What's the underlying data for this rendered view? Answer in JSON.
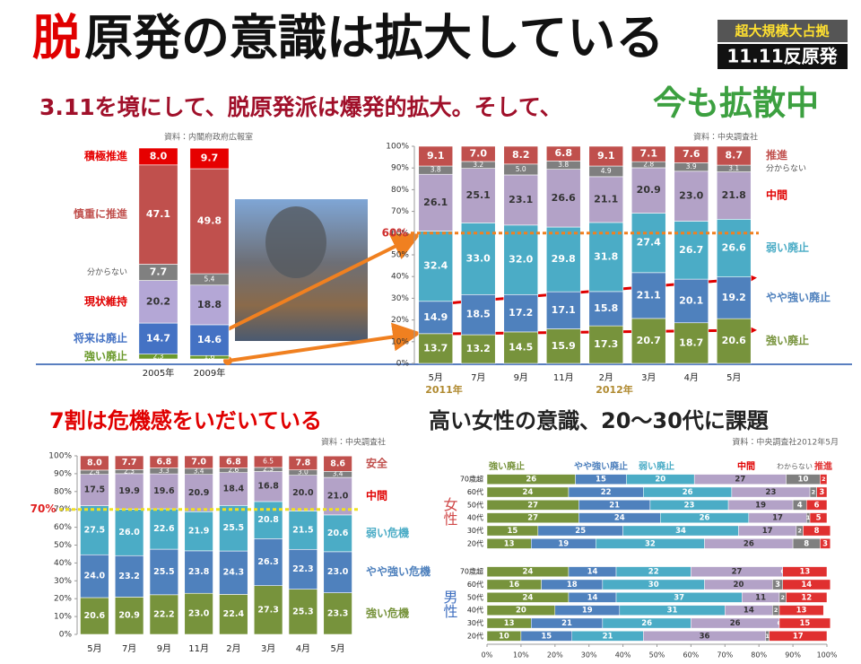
{
  "header": {
    "title_lead": "脱",
    "title_rest": "原発の意識は拡大している",
    "badge_top": "超大規模大占拠",
    "badge_bottom": "11.11反原発",
    "subtitle": "3.11を境にして、脱原発派は爆発的拡大。そして、",
    "subtitle_emph": "今も拡散中"
  },
  "chart_data": [
    {
      "type": "stacked_bar",
      "source": "資料：内閣府政府広報室",
      "categories": [
        "2005年",
        "2009年"
      ],
      "ylim": [
        0,
        100
      ],
      "series": [
        {
          "name": "強い廃止",
          "color": "#6b9a2c",
          "values": [
            2.3,
            1.6
          ],
          "value_labels": [
            "2.3",
            "1.6"
          ]
        },
        {
          "name": "将来は廃止",
          "color": "#4472c4",
          "values": [
            14.7,
            14.6
          ],
          "value_labels": [
            "14.7",
            "14.6"
          ]
        },
        {
          "name": "現状維持",
          "color": "#b4a7d6",
          "values": [
            20.2,
            18.8
          ],
          "value_labels": [
            "20.2",
            "18.8"
          ]
        },
        {
          "name": "分からない",
          "color": "#808080",
          "values": [
            7.7,
            5.4
          ],
          "value_labels": [
            "7.7",
            "5.4"
          ]
        },
        {
          "name": "慎重に推進",
          "color": "#c0504d",
          "values": [
            47.1,
            49.8
          ],
          "value_labels": [
            "47.1",
            "49.8"
          ]
        },
        {
          "name": "積極推進",
          "color": "#e60000",
          "values": [
            8.0,
            9.7
          ],
          "value_labels": [
            "8.0",
            "9.7"
          ]
        }
      ]
    },
    {
      "type": "stacked_bar",
      "source": "資料：中央調査社",
      "categories": [
        "5月",
        "7月",
        "9月",
        "11月",
        "2月",
        "3月",
        "4月",
        "5月"
      ],
      "annotations": [
        "2011年",
        "2012年"
      ],
      "reference_line": {
        "value": 60,
        "label": "60%"
      },
      "ylim": [
        0,
        100
      ],
      "yticks": [
        {
          "value": 0,
          "label": "0%"
        },
        {
          "value": 10,
          "label": "10%"
        },
        {
          "value": 20,
          "label": "20%"
        },
        {
          "value": 30,
          "label": "30%"
        },
        {
          "value": 40,
          "label": "40%"
        },
        {
          "value": 50,
          "label": "50%"
        },
        {
          "value": 60,
          "label": "60%"
        },
        {
          "value": 70,
          "label": "70%"
        },
        {
          "value": 80,
          "label": "80%"
        },
        {
          "value": 90,
          "label": "90%"
        },
        {
          "value": 100,
          "label": "100%"
        }
      ],
      "series": [
        {
          "name": "強い廃止",
          "color": "#77933c",
          "values": [
            13.7,
            13.2,
            14.5,
            15.9,
            17.3,
            20.7,
            18.7,
            20.6
          ],
          "value_labels": [
            "13.7",
            "13.2",
            "14.5",
            "15.9",
            "17.3",
            "20.7",
            "18.7",
            "20.6"
          ]
        },
        {
          "name": "やや強い廃止",
          "color": "#4f81bd",
          "values": [
            14.9,
            18.5,
            17.2,
            17.1,
            15.8,
            21.1,
            20.1,
            19.2
          ],
          "value_labels": [
            "14.9",
            "18.5",
            "17.2",
            "17.1",
            "15.8",
            "21.1",
            "20.1",
            "19.2"
          ]
        },
        {
          "name": "弱い廃止",
          "color": "#4bacc6",
          "values": [
            32.4,
            33.0,
            32.0,
            29.8,
            31.8,
            27.4,
            26.7,
            26.6
          ],
          "value_labels": [
            "32.4",
            "33.0",
            "32.0",
            "29.8",
            "31.8",
            "27.4",
            "26.7",
            "26.6"
          ]
        },
        {
          "name": "中間",
          "color": "#b3a2c7",
          "values": [
            26.1,
            25.1,
            23.1,
            26.6,
            21.1,
            20.9,
            23.0,
            21.8
          ],
          "value_labels": [
            "26.1",
            "25.1",
            "23.1",
            "26.6",
            "21.1",
            "20.9",
            "23.0",
            "21.8"
          ]
        },
        {
          "name": "分からない",
          "color": "#7f7f7f",
          "values": [
            3.8,
            3.2,
            5.0,
            3.8,
            4.9,
            2.8,
            3.9,
            3.1
          ],
          "value_labels": [
            "3.8",
            "3.2",
            "5.0",
            "3.8",
            "4.9",
            "2.8",
            "3.9",
            "3.1"
          ]
        },
        {
          "name": "推進",
          "color": "#c0504d",
          "values": [
            9.1,
            7.0,
            8.2,
            6.8,
            9.1,
            7.1,
            7.6,
            8.7
          ],
          "value_labels": [
            "9.1",
            "7.0",
            "8.2",
            "6.8",
            "9.1",
            "7.1",
            "7.6",
            "8.7"
          ]
        }
      ]
    },
    {
      "type": "stacked_bar",
      "title": "7割は危機感をいだいている",
      "source": "資料：中央調査社",
      "categories": [
        "5月",
        "7月",
        "9月",
        "11月",
        "2月",
        "3月",
        "4月",
        "5月"
      ],
      "reference_line": {
        "value": 70,
        "label": "70%"
      },
      "ylim": [
        0,
        100
      ],
      "yticks": [
        {
          "value": 0,
          "label": "0%"
        },
        {
          "value": 10,
          "label": "10%"
        },
        {
          "value": 20,
          "label": "20%"
        },
        {
          "value": 30,
          "label": "30%"
        },
        {
          "value": 40,
          "label": "40%"
        },
        {
          "value": 50,
          "label": "50%"
        },
        {
          "value": 60,
          "label": "60%"
        },
        {
          "value": 70,
          "label": "70%"
        },
        {
          "value": 80,
          "label": "80%"
        },
        {
          "value": 90,
          "label": "90%"
        },
        {
          "value": 100,
          "label": "100%"
        }
      ],
      "series": [
        {
          "name": "強い危機",
          "color": "#77933c",
          "values": [
            20.6,
            20.9,
            22.2,
            23.0,
            22.4,
            27.3,
            25.3,
            23.3
          ],
          "value_labels": [
            "20.6",
            "20.9",
            "22.2",
            "23.0",
            "22.4",
            "27.3",
            "25.3",
            "23.3"
          ]
        },
        {
          "name": "やや強い危機",
          "color": "#4f81bd",
          "values": [
            24.0,
            23.2,
            25.5,
            23.8,
            24.3,
            26.3,
            22.3,
            23.0
          ],
          "value_labels": [
            "24.0",
            "23.2",
            "25.5",
            "23.8",
            "24.3",
            "26.3",
            "22.3",
            "23.0"
          ]
        },
        {
          "name": "弱い危機",
          "color": "#4bacc6",
          "values": [
            27.5,
            26.0,
            22.6,
            21.9,
            25.5,
            20.8,
            21.5,
            20.6
          ],
          "value_labels": [
            "27.5",
            "26.0",
            "22.6",
            "21.9",
            "25.5",
            "20.8",
            "21.5",
            "20.6"
          ]
        },
        {
          "name": "中間",
          "color": "#b3a2c7",
          "values": [
            17.5,
            19.9,
            19.6,
            20.9,
            18.4,
            16.8,
            20.0,
            21.0
          ],
          "value_labels": [
            "17.5",
            "19.9",
            "19.6",
            "20.9",
            "18.4",
            "16.8",
            "20.0",
            "21.0"
          ]
        },
        {
          "color": "#7f7f7f",
          "values": [
            2.4,
            2.3,
            3.3,
            3.4,
            2.6,
            2.3,
            3.0,
            3.4
          ],
          "value_labels": [
            "2.4",
            "2.3",
            "3.3",
            "3.4",
            "2.6",
            "2.3",
            "3.0",
            "3.4"
          ]
        },
        {
          "name": "安全",
          "color": "#c0504d",
          "values": [
            8.0,
            7.7,
            6.8,
            7.0,
            6.8,
            6.5,
            7.8,
            8.6
          ],
          "value_labels": [
            "8.0",
            "7.7",
            "6.8",
            "7.0",
            "6.8",
            "6.5",
            "7.8",
            "8.6"
          ]
        }
      ]
    },
    {
      "type": "stacked_barh",
      "title": "高い女性の意識、20～30代に課題",
      "source": "資料：中央調査社2012年5月",
      "group": "女性",
      "categories": [
        "70歳超",
        "60代",
        "50代",
        "40代",
        "30代",
        "20代"
      ],
      "xlim": [
        0,
        100
      ],
      "series": [
        {
          "name": "強い廃止",
          "color": "#77933c",
          "values": [
            26,
            24,
            27,
            27,
            15,
            13
          ]
        },
        {
          "name": "やや強い廃止",
          "color": "#4f81bd",
          "values": [
            15,
            22,
            21,
            24,
            25,
            19
          ]
        },
        {
          "name": "弱い廃止",
          "color": "#4bacc6",
          "values": [
            20,
            26,
            23,
            26,
            34,
            32
          ]
        },
        {
          "name": "中間",
          "color": "#b3a2c7",
          "values": [
            27,
            23,
            19,
            17,
            17,
            26
          ]
        },
        {
          "name": "わからない",
          "color": "#7f7f7f",
          "values": [
            10,
            2,
            4,
            1,
            2,
            8
          ]
        },
        {
          "name": "推進",
          "color": "#e03030",
          "values": [
            2,
            3,
            6,
            5,
            8,
            3
          ]
        }
      ]
    },
    {
      "type": "stacked_barh",
      "group": "男性",
      "categories": [
        "70歳超",
        "60代",
        "50代",
        "40代",
        "30代",
        "20代"
      ],
      "xlim": [
        0,
        100
      ],
      "xticks": [
        {
          "value": 0,
          "label": "0%"
        },
        {
          "value": 10,
          "label": "10%"
        },
        {
          "value": 20,
          "label": "20%"
        },
        {
          "value": 30,
          "label": "30%"
        },
        {
          "value": 40,
          "label": "40%"
        },
        {
          "value": 50,
          "label": "50%"
        },
        {
          "value": 60,
          "label": "60%"
        },
        {
          "value": 70,
          "label": "70%"
        },
        {
          "value": 80,
          "label": "80%"
        },
        {
          "value": 90,
          "label": "90%"
        },
        {
          "value": 100,
          "label": "100%"
        }
      ],
      "series": [
        {
          "color": "#77933c",
          "values": [
            24,
            16,
            24,
            20,
            13,
            10
          ]
        },
        {
          "color": "#4f81bd",
          "values": [
            14,
            18,
            14,
            19,
            21,
            15
          ]
        },
        {
          "color": "#4bacc6",
          "values": [
            22,
            30,
            37,
            31,
            26,
            21
          ]
        },
        {
          "color": "#b3a2c7",
          "values": [
            27,
            20,
            11,
            14,
            26,
            36
          ]
        },
        {
          "color": "#7f7f7f",
          "values": [
            0,
            3,
            2,
            2,
            0,
            1
          ]
        },
        {
          "color": "#e03030",
          "values": [
            13,
            14,
            12,
            13,
            15,
            17
          ]
        }
      ]
    }
  ]
}
